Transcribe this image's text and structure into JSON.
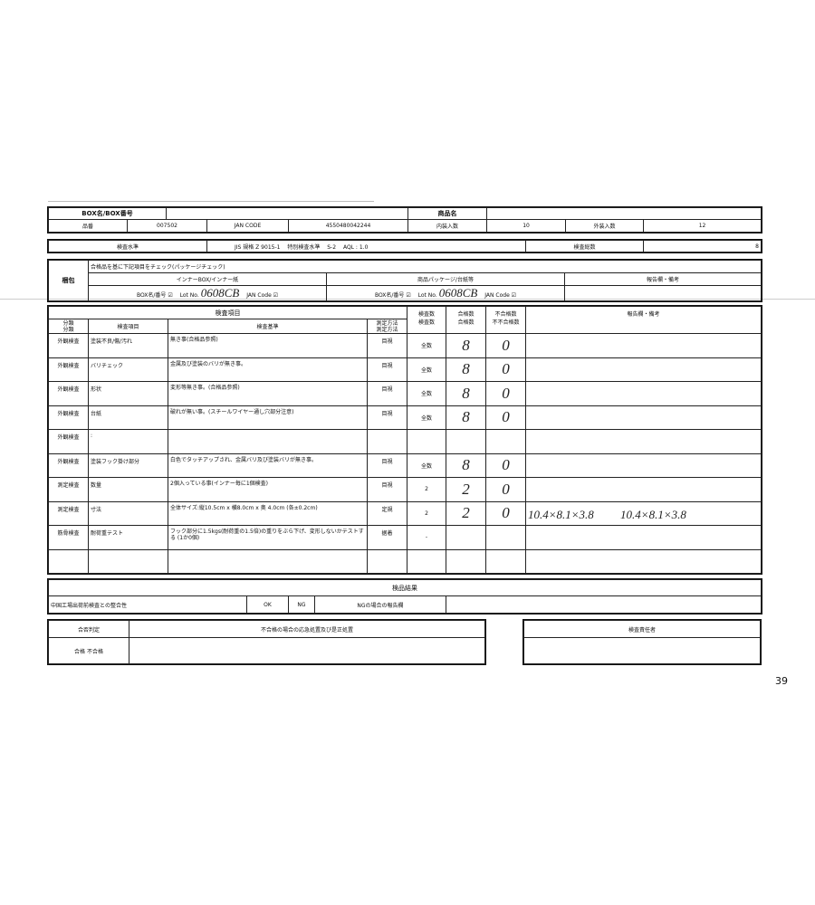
{
  "header": {
    "box_label": "BOX名/BOX番号",
    "product_name_label": "商品名",
    "part_no_label": "品番",
    "part_no": "007502",
    "jan_label": "JAN CODE",
    "jan": "4550480042244",
    "inner_qty_label": "内装入数",
    "inner_qty": "10",
    "outer_qty_label": "外装入数",
    "outer_qty": "12"
  },
  "level": {
    "label": "検査水準",
    "value": "JIS 規格 Z 9015-1　 特別検査水準　 S-2　 AQL : 1.0",
    "total_label": "検査総数",
    "total": "8"
  },
  "package": {
    "label": "梱包",
    "instruction": "合格品を基に下記項目をチェック(パッケージチェック)",
    "inner_title": "インナーBOX/インナー紙",
    "pkg_title": "商品パッケージ/台紙等",
    "remarks_title": "報告欄・備考",
    "box_no": "BOX名/番号 ☑",
    "lot_label": "Lot No.",
    "lot": "0608CB",
    "jan_code": "JAN Code ☑"
  },
  "inspection": {
    "title": "検査項目",
    "cols": [
      "分類\n分類",
      "検査項目",
      "検査基準",
      "測定方法\n測定方法",
      "検査数\n検査数",
      "合格数\n合格数",
      "不合格数\n不不合格数",
      "報告欄・備考"
    ],
    "rows": [
      {
        "cat": "外観検査",
        "item": "塗装不良/傷/汚れ",
        "std": "無き事(合格品参照)",
        "method": "目視",
        "n": "全数",
        "ok": "8",
        "ng": "0",
        "note": ""
      },
      {
        "cat": "外観検査",
        "item": "バリチェック",
        "std": "金属及び塗装のバリが無き事。",
        "method": "目視",
        "n": "全数",
        "ok": "8",
        "ng": "0",
        "note": ""
      },
      {
        "cat": "外観検査",
        "item": "形状",
        "std": "変形等無き事。(合格品参照)",
        "method": "目視",
        "n": "全数",
        "ok": "8",
        "ng": "0",
        "note": ""
      },
      {
        "cat": "外観検査",
        "item": "台紙",
        "std": "破れが無い事。(スチールワイヤー通し穴部分注意)",
        "method": "目視",
        "n": "全数",
        "ok": "8",
        "ng": "0",
        "note": ""
      },
      {
        "cat": "外観検査",
        "item": ":",
        "std": "",
        "method": "",
        "n": "",
        "ok": "",
        "ng": "",
        "note": ""
      },
      {
        "cat": "外観検査",
        "item": "塗装フック掛け部分",
        "std": "白色でタッチアップされ、金属バリ及び塗装バリが無き事。",
        "method": "目視",
        "n": "全数",
        "ok": "8",
        "ng": "0",
        "note": ""
      },
      {
        "cat": "測定検査",
        "item": "数量",
        "std": "2個入っている事(インナー毎に1個検査)",
        "method": "目視",
        "n": "2",
        "ok": "2",
        "ng": "0",
        "note": ""
      },
      {
        "cat": "測定検査",
        "item": "寸法",
        "std": "全体サイズ:縦10.5cm x 横8.0cm x 奥 4.0cm (各±0.2cm)",
        "method": "定規",
        "n": "2",
        "ok": "2",
        "ng": "0",
        "note": "10.4×8.1×3.8　　 10.4×8.1×3.8"
      },
      {
        "cat": "筋骨検査",
        "item": "耐荷重テスト",
        "std": "フック部分に1.5kgs(耐荷重の1.5倍)の重りをぶら下げ、変形しないかテストする (1か0個)",
        "method": "据着",
        "n": "-",
        "ok": "",
        "ng": "",
        "note": ""
      },
      {
        "cat": "",
        "item": "",
        "std": "",
        "method": "",
        "n": "",
        "ok": "",
        "ng": "",
        "note": ""
      }
    ]
  },
  "result": {
    "title": "検品結果",
    "consistency": "中国工場出荷前検査との整合性",
    "ok": "OK",
    "ng": "NG",
    "ng_report": "NGの場合の報告欄"
  },
  "judgement": {
    "label": "合否判定",
    "options": "合格 不合格",
    "action_label": "不合格の場合の応急処置及び是正処置",
    "responsible_label": "検査責任者"
  },
  "page_number": "39"
}
